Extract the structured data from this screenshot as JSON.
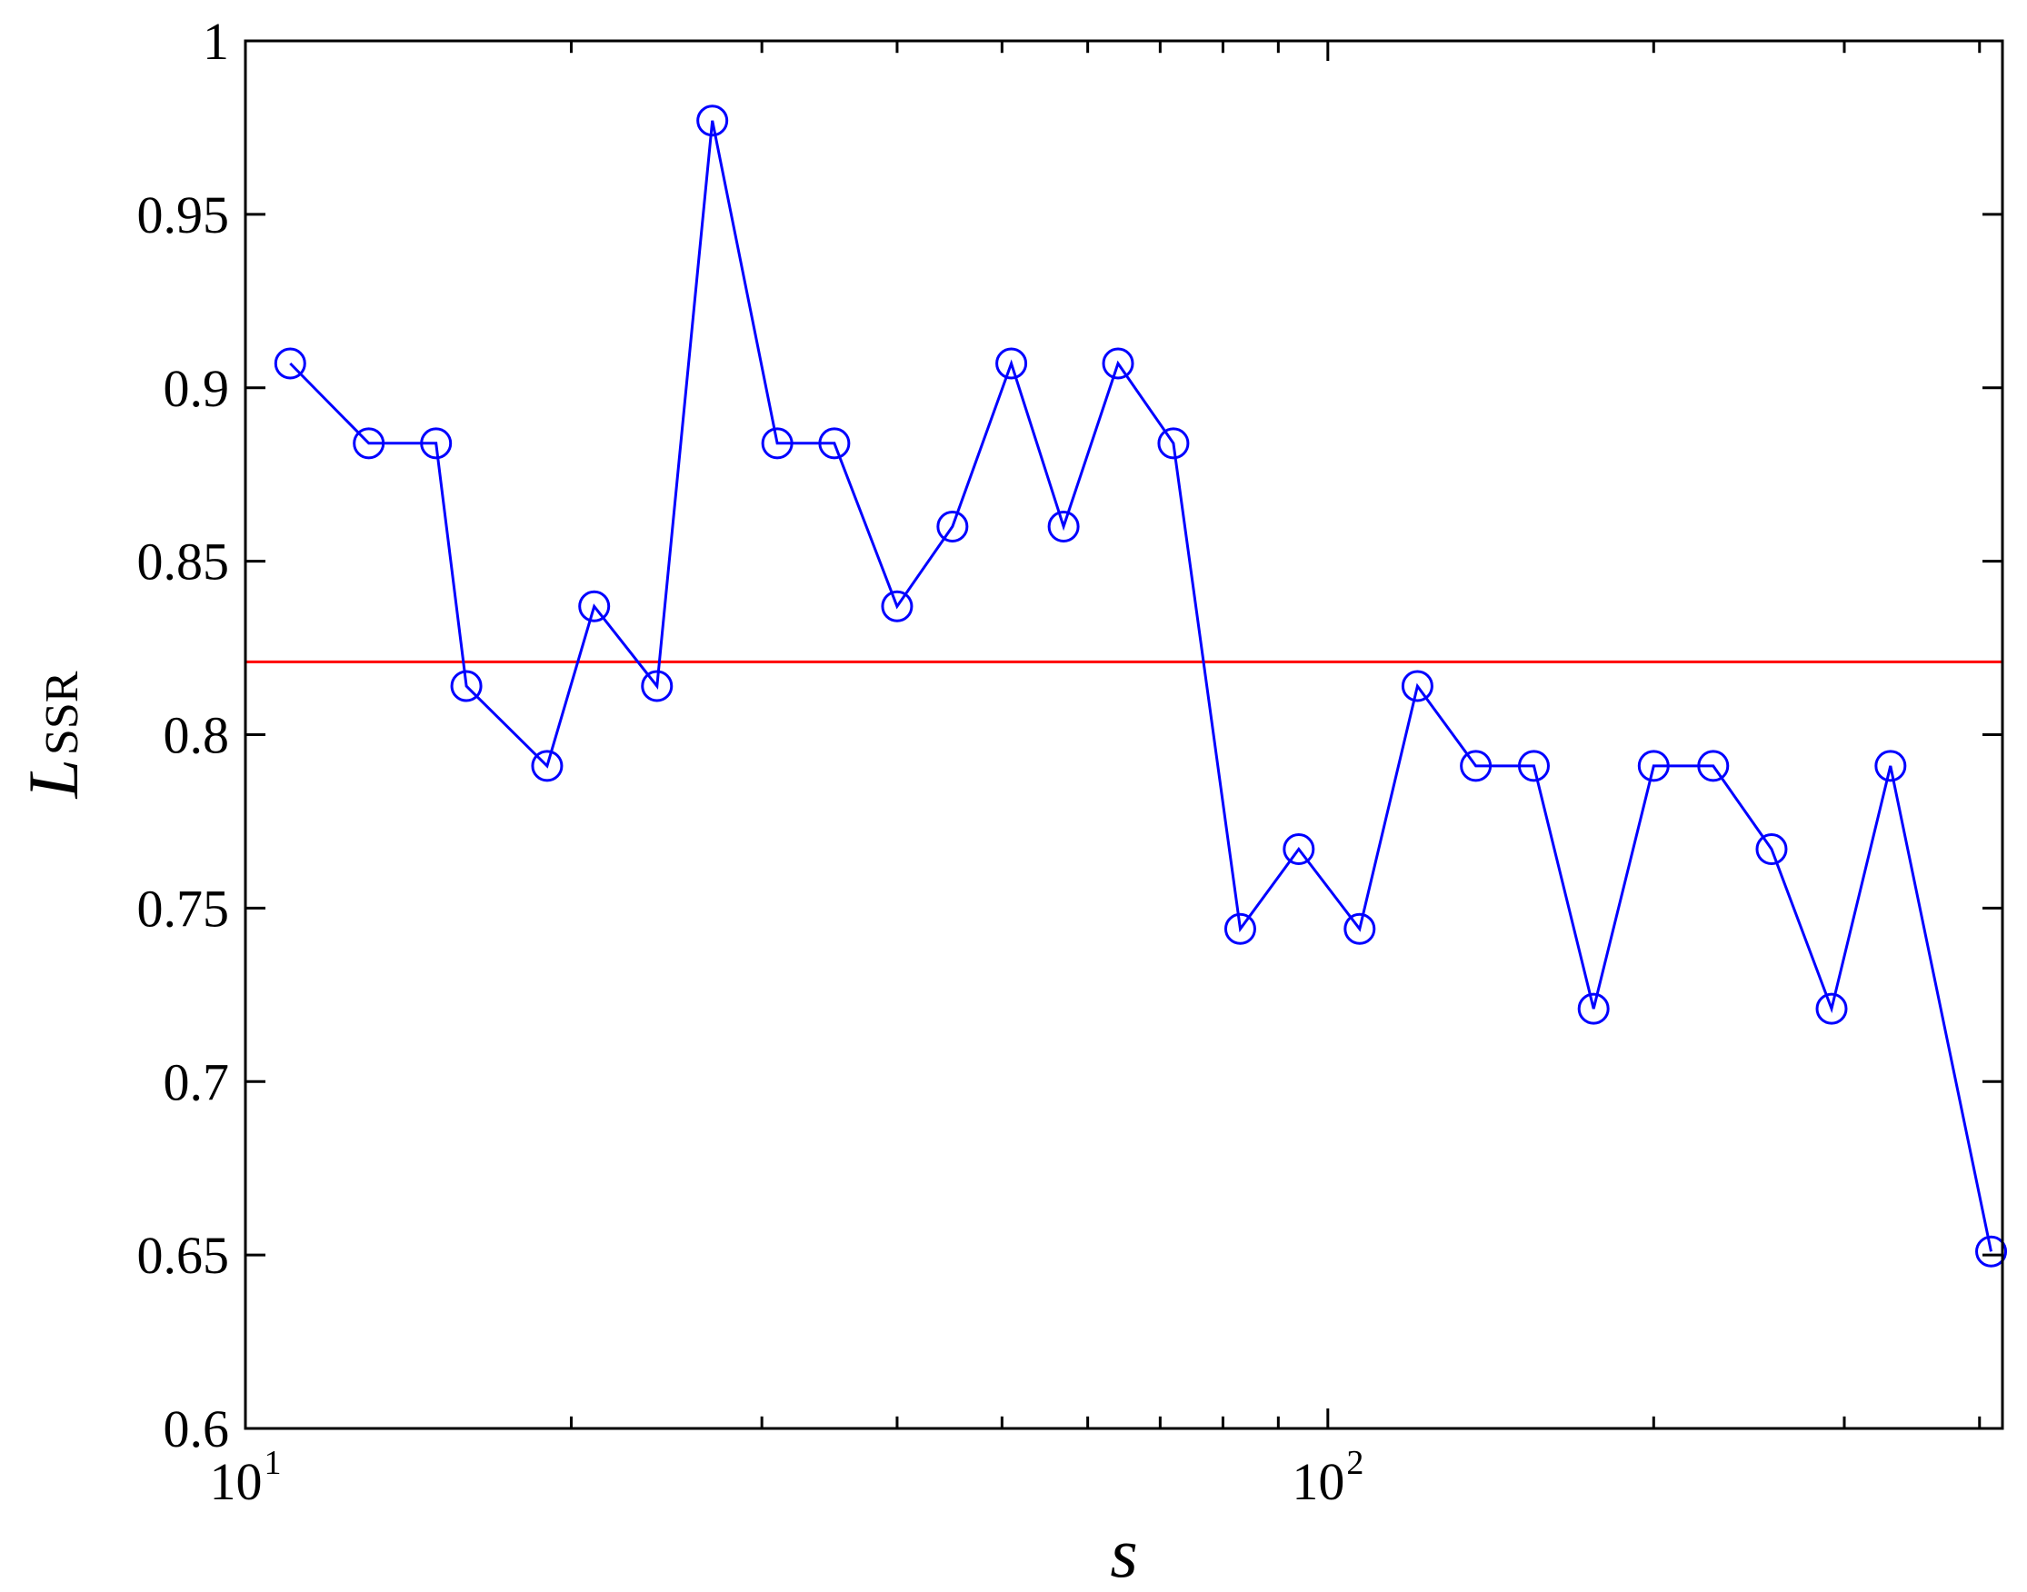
{
  "chart_data": {
    "type": "line",
    "xscale": "log",
    "xlim": [
      10,
      420
    ],
    "ylim": [
      0.6,
      1.0
    ],
    "grid": false,
    "legend": "none",
    "xlabel": "s",
    "ylabel": "L",
    "ylabel_subscript": "SSR",
    "x_ticks": [
      {
        "value": 10,
        "base": "10",
        "exp": "1"
      },
      {
        "value": 100,
        "base": "10",
        "exp": "2"
      }
    ],
    "y_ticks": [
      "0.6",
      "0.65",
      "0.7",
      "0.75",
      "0.8",
      "0.85",
      "0.9",
      "0.95",
      "1"
    ],
    "series": [
      {
        "color": "#0000ff",
        "marker": "circle-open",
        "x": [
          11,
          13,
          15,
          16,
          19,
          21,
          24,
          27,
          31,
          35,
          40,
          45,
          51,
          57,
          64,
          72,
          83,
          94,
          107,
          121,
          137,
          155,
          176,
          200,
          227,
          257,
          292,
          331,
          410
        ],
        "y": [
          0.907,
          0.884,
          0.884,
          0.814,
          0.791,
          0.837,
          0.814,
          0.977,
          0.884,
          0.884,
          0.837,
          0.86,
          0.907,
          0.86,
          0.907,
          0.884,
          0.744,
          0.767,
          0.744,
          0.814,
          0.791,
          0.791,
          0.721,
          0.791,
          0.791,
          0.767,
          0.721,
          0.791,
          0.651
        ]
      }
    ],
    "reference_lines": [
      {
        "orientation": "horizontal",
        "y": 0.821,
        "color": "#ff0000"
      }
    ]
  }
}
